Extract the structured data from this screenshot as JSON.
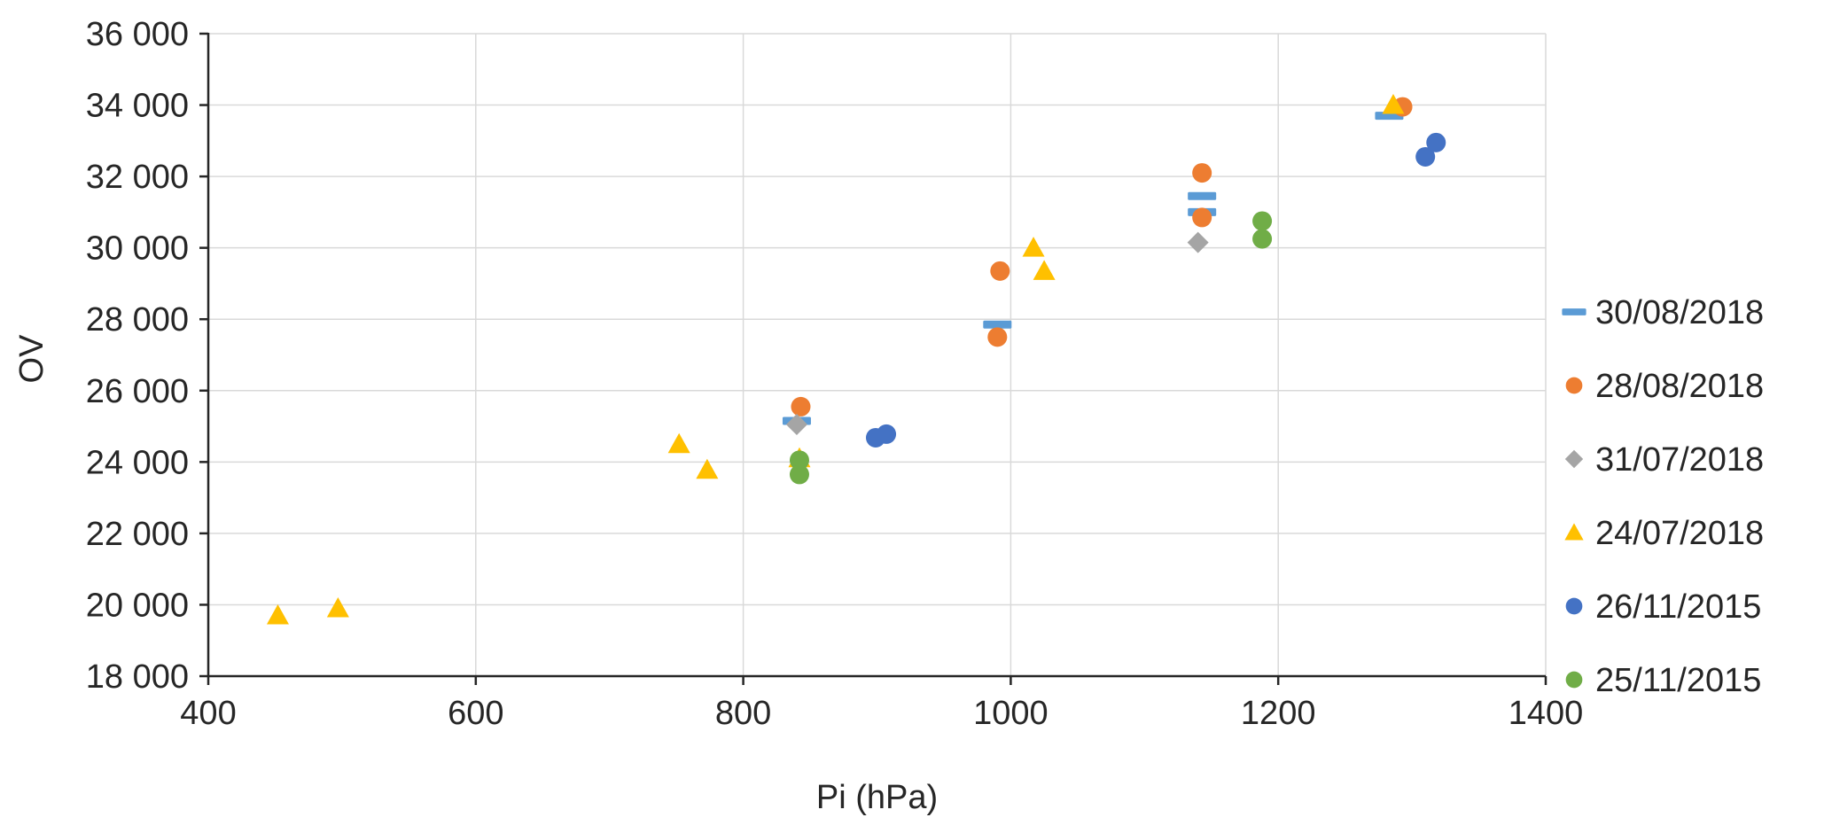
{
  "chart_data": {
    "type": "scatter",
    "title": "",
    "xlabel": "Pi (hPa)",
    "ylabel": "OV",
    "xlim": [
      400,
      1400
    ],
    "ylim": [
      18000,
      36000
    ],
    "xticks": [
      400,
      600,
      800,
      1000,
      1200,
      1400
    ],
    "yticks": [
      18000,
      20000,
      22000,
      24000,
      26000,
      28000,
      30000,
      32000,
      34000,
      36000
    ],
    "grid": true,
    "legend_position": "right",
    "colors": {
      "grid": "#D9D9D9",
      "axis": "#262626",
      "text": "#262626",
      "background": "#FFFFFF"
    },
    "series": [
      {
        "name": "30/08/2018",
        "marker": "dash",
        "color": "#5B9BD5",
        "points": [
          [
            840,
            25150
          ],
          [
            990,
            27850
          ],
          [
            1143,
            31450
          ],
          [
            1143,
            31000
          ],
          [
            1283,
            33700
          ]
        ]
      },
      {
        "name": "28/08/2018",
        "marker": "circle",
        "color": "#ED7D31",
        "points": [
          [
            843,
            25550
          ],
          [
            990,
            27500
          ],
          [
            992,
            29350
          ],
          [
            1143,
            30850
          ],
          [
            1143,
            32100
          ],
          [
            1293,
            33950
          ]
        ]
      },
      {
        "name": "31/07/2018",
        "marker": "diamond",
        "color": "#A5A5A5",
        "points": [
          [
            840,
            25050
          ],
          [
            1140,
            30150
          ]
        ]
      },
      {
        "name": "24/07/2018",
        "marker": "triangle",
        "color": "#FFC000",
        "points": [
          [
            452,
            19700
          ],
          [
            497,
            19900
          ],
          [
            752,
            24500
          ],
          [
            773,
            23780
          ],
          [
            842,
            24100
          ],
          [
            1017,
            30000
          ],
          [
            1025,
            29350
          ],
          [
            1286,
            34000
          ]
        ]
      },
      {
        "name": "26/11/2015",
        "marker": "circle",
        "color": "#4472C4",
        "points": [
          [
            899,
            24680
          ],
          [
            907,
            24780
          ],
          [
            1310,
            32550
          ],
          [
            1318,
            32950
          ]
        ]
      },
      {
        "name": "25/11/2015",
        "marker": "circle",
        "color": "#70AD47",
        "points": [
          [
            842,
            24050
          ],
          [
            842,
            23650
          ],
          [
            1188,
            30750
          ],
          [
            1188,
            30250
          ]
        ]
      }
    ]
  }
}
